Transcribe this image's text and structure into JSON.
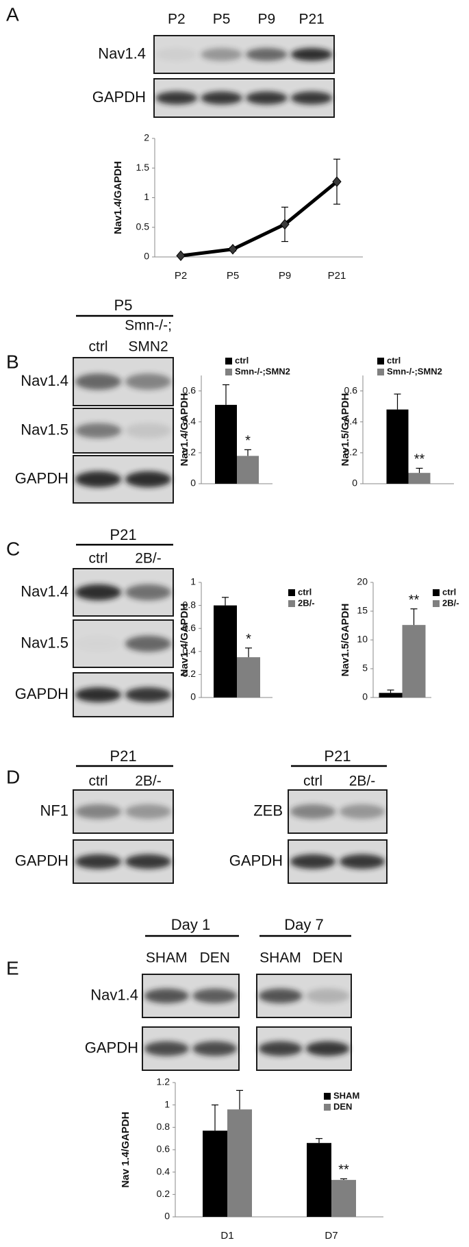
{
  "letters": [
    "A",
    "B",
    "C",
    "D",
    "E"
  ],
  "blots": [
    {
      "lanes": [
        [
          "P2"
        ],
        [
          "P5"
        ],
        [
          "P9"
        ],
        [
          "P21"
        ]
      ],
      "rows": [
        "Nav1.4",
        "GAPDH"
      ]
    },
    {
      "group": "P5",
      "lanes": [
        [
          "ctrl"
        ],
        [
          "Smn-/-;",
          "SMN2"
        ]
      ],
      "rows": [
        "Nav1.4",
        "Nav1.5",
        "GAPDH"
      ]
    },
    {
      "group": "P21",
      "lanes": [
        [
          "ctrl"
        ],
        [
          "2B/-"
        ]
      ],
      "rows": [
        "Nav1.4",
        "Nav1.5",
        "GAPDH"
      ]
    },
    {
      "group": "P21",
      "lanes": [
        [
          "ctrl"
        ],
        [
          "2B/-"
        ]
      ],
      "rows": [
        "NF1",
        "GAPDH"
      ]
    },
    {
      "group": "P21",
      "lanes": [
        [
          "ctrl"
        ],
        [
          "2B/-"
        ]
      ],
      "rows": [
        "ZEB",
        "GAPDH"
      ]
    },
    {
      "group": "Day 1",
      "lanes": [
        [
          "SHAM"
        ],
        [
          "DEN"
        ]
      ],
      "rows": [
        "Nav1.4",
        "GAPDH"
      ]
    },
    {
      "group": "Day 7",
      "lanes": [
        [
          "SHAM"
        ],
        [
          "DEN"
        ]
      ]
    }
  ],
  "chart_data": [
    {
      "type": "line",
      "y_label": "Nav1.4/GAPDH",
      "categories": [
        "P2",
        "P5",
        "P9",
        "P21"
      ],
      "series": [
        {
          "color": "#000000",
          "values": [
            0.02,
            0.13,
            0.55,
            1.27
          ],
          "errors": [
            0.01,
            0.03,
            0.29,
            0.38
          ]
        }
      ],
      "ylim": [
        0,
        2
      ],
      "yticks": [
        0,
        0.5,
        1,
        1.5,
        2
      ]
    },
    {
      "type": "bar",
      "y_label": "Nav1.4/GAPDH",
      "series": [
        {
          "name": "ctrl",
          "color": "#000000",
          "values": [
            0.51
          ],
          "errors": [
            0.13
          ]
        },
        {
          "name": "Smn-/-;SMN2",
          "color": "#808080",
          "values": [
            0.18
          ],
          "errors": [
            0.04
          ]
        }
      ],
      "annotations": [
        "*"
      ],
      "ylim": [
        0,
        0.7
      ],
      "yticks": [
        0,
        0.2,
        0.4,
        0.6
      ]
    },
    {
      "type": "bar",
      "y_label": "Nav1.5/GAPDH",
      "series": [
        {
          "name": "ctrl",
          "color": "#000000",
          "values": [
            0.48
          ],
          "errors": [
            0.1
          ]
        },
        {
          "name": "Smn-/-;SMN2",
          "color": "#808080",
          "values": [
            0.07
          ],
          "errors": [
            0.03
          ]
        }
      ],
      "annotations": [
        "**"
      ],
      "ylim": [
        0,
        0.7
      ],
      "yticks": [
        0,
        0.2,
        0.4,
        0.6
      ]
    },
    {
      "type": "bar",
      "y_label": "Nav1.4/GAPDH",
      "series": [
        {
          "name": "ctrl",
          "color": "#000000",
          "values": [
            0.8
          ],
          "errors": [
            0.07
          ]
        },
        {
          "name": "2B/-",
          "color": "#808080",
          "values": [
            0.35
          ],
          "errors": [
            0.08
          ]
        }
      ],
      "annotations": [
        "*"
      ],
      "ylim": [
        0,
        1
      ],
      "yticks": [
        0,
        0.2,
        0.4,
        0.6,
        0.8,
        1
      ]
    },
    {
      "type": "bar",
      "y_label": "Nav1.5/GAPDH",
      "series": [
        {
          "name": "ctrl",
          "color": "#000000",
          "values": [
            0.8
          ],
          "errors": [
            0.5
          ]
        },
        {
          "name": "2B/-",
          "color": "#808080",
          "values": [
            12.6
          ],
          "errors": [
            2.8
          ]
        }
      ],
      "annotations": [
        "**"
      ],
      "ylim": [
        0,
        20
      ],
      "yticks": [
        0,
        5,
        10,
        15,
        20
      ]
    },
    {
      "type": "bar",
      "y_label": "Nav 1.4/GAPDH",
      "categories": [
        "D1",
        "D7"
      ],
      "series": [
        {
          "name": "SHAM",
          "color": "#000000",
          "values": [
            0.77,
            0.66
          ],
          "errors": [
            0.23,
            0.04
          ]
        },
        {
          "name": "DEN",
          "color": "#808080",
          "values": [
            0.96,
            0.33
          ],
          "errors": [
            0.17,
            0.01
          ]
        }
      ],
      "annotations": [
        "**"
      ],
      "ylim": [
        0,
        1.2
      ],
      "yticks": [
        0,
        0.2,
        0.4,
        0.6,
        0.8,
        1,
        1.2
      ]
    }
  ]
}
